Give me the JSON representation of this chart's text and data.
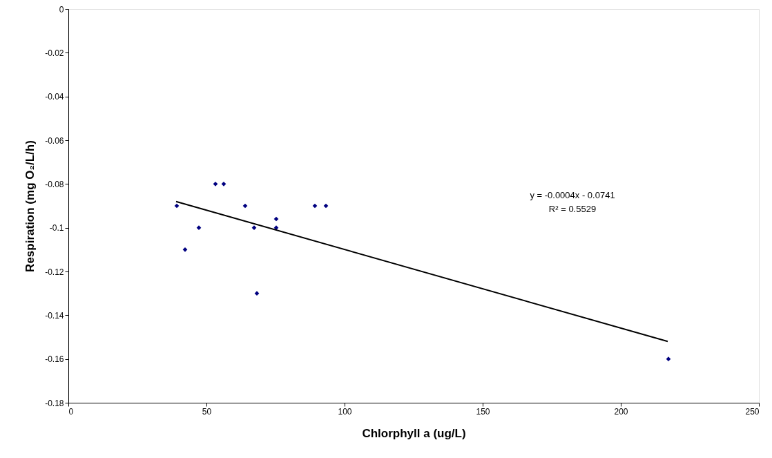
{
  "chart_data": {
    "type": "scatter",
    "xlabel": "Chlorphyll a  (ug/L)",
    "ylabel": "Respiration (mg O₂/L/h)",
    "xlim": [
      0,
      250
    ],
    "xticks": [
      0,
      50,
      100,
      150,
      200,
      250
    ],
    "ylim": [
      -0.18,
      0
    ],
    "yticks": [
      {
        "value": 0,
        "label": "0"
      },
      {
        "value": -0.02,
        "label": "-0.02"
      },
      {
        "value": -0.04,
        "label": "-0.04"
      },
      {
        "value": -0.06,
        "label": "-0.06"
      },
      {
        "value": -0.08,
        "label": "-0.08"
      },
      {
        "value": -0.1,
        "label": "-0.1"
      },
      {
        "value": -0.12,
        "label": "-0.12"
      },
      {
        "value": -0.14,
        "label": "-0.14"
      },
      {
        "value": -0.16,
        "label": "-0.16"
      },
      {
        "value": -0.18,
        "label": "-0.18"
      }
    ],
    "grid": false,
    "series": [
      {
        "color": "#000080",
        "marker": "diamond",
        "x": [
          39.25,
          42.25,
          47.25,
          53.25,
          56.25,
          64,
          67.25,
          68.25,
          75.25,
          75.25,
          89.25,
          93.25,
          217.25
        ],
        "values": [
          -0.09,
          -0.11,
          -0.1,
          -0.08,
          -0.08,
          -0.09,
          -0.1,
          -0.13,
          -0.096,
          -0.1,
          -0.09,
          -0.09,
          -0.16
        ]
      },
      {
        "type": "line",
        "color": "#000000",
        "line_style": "solid",
        "x": [
          39,
          217
        ],
        "values": [
          -0.088,
          -0.152
        ]
      }
    ],
    "annotations": [
      "y = -0.0004x - 0.0741",
      "R² = 0.5529"
    ]
  }
}
